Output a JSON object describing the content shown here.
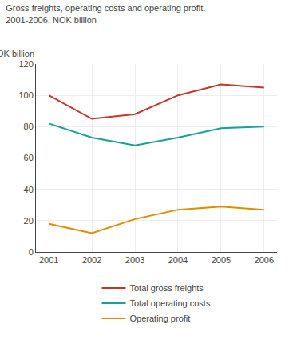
{
  "chart_data": {
    "type": "line",
    "title": "Gross freights, operating costs and operating profit.",
    "subtitle": "2001-2006. NOK billion",
    "y_label": "NOK billion",
    "x": [
      2001,
      2002,
      2003,
      2004,
      2005,
      2006
    ],
    "series": [
      {
        "name": "Total gross freights",
        "color": "#c0392b",
        "values": [
          100,
          85,
          88,
          100,
          107,
          105
        ]
      },
      {
        "name": "Total operating costs",
        "color": "#1a9e9e",
        "values": [
          82,
          73,
          68,
          73,
          79,
          80
        ]
      },
      {
        "name": "Operating profit",
        "color": "#e08c00",
        "values": [
          18,
          12,
          21,
          27,
          29,
          27
        ]
      }
    ],
    "xlim": [
      2000.7,
      2006.3
    ],
    "xticks": [
      2001,
      2002,
      2003,
      2004,
      2005,
      2006
    ],
    "ylim": [
      0,
      120
    ],
    "yticks": [
      0,
      20,
      40,
      60,
      80,
      100,
      120
    ],
    "grid": true,
    "legend": "bottom"
  }
}
